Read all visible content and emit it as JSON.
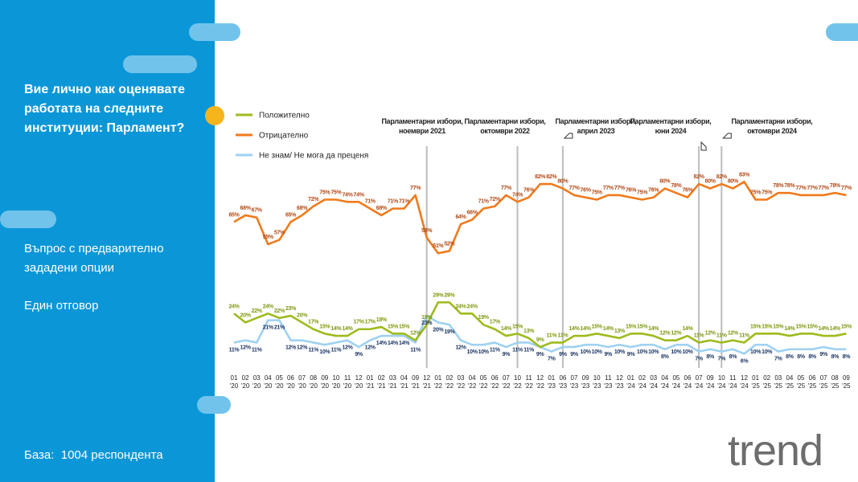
{
  "title": "Вие лично как оценявате работата на следните институции: Парламент?",
  "question_type": "Въпрос с предварително зададени опции",
  "answer_type": "Един отговор",
  "base": "База:  1004 респондента",
  "logo": "trend",
  "chart_data": {
    "type": "line",
    "categories": [
      "01 '20",
      "02 '20",
      "03 '20",
      "04 '20",
      "05 '20",
      "06 '20",
      "07 '20",
      "08 '20",
      "09 '20",
      "10 '20",
      "11 '20",
      "12 '20",
      "01 '21",
      "02 '21",
      "03 '21",
      "04 '21",
      "09 '21",
      "12 '21",
      "01 '22",
      "02 '22",
      "03 '22",
      "04 '22",
      "05 '22",
      "06 '22",
      "07 '22",
      "10 '22",
      "11 '22",
      "12 '22",
      "01 '23",
      "06 '23",
      "07 '23",
      "09 '23",
      "10 '23",
      "11 '23",
      "12 '23",
      "01 '24",
      "02 '24",
      "03 '24",
      "04 '24",
      "05 '24",
      "06 '24",
      "07 '24",
      "09 '24",
      "10 '24",
      "11 '24",
      "12 '24",
      "01 '25",
      "02 '25",
      "03 '25",
      "04 '25",
      "05 '25",
      "06 '25",
      "07 '25",
      "08 '25",
      "09 '25"
    ],
    "series": [
      {
        "name": "Положително",
        "color": "#9dbb1e",
        "label_color": "#7f9a12",
        "values": [
          24,
          20,
          22,
          24,
          22,
          23,
          20,
          17,
          15,
          14,
          14,
          17,
          17,
          18,
          15,
          15,
          12,
          19,
          29,
          29,
          24,
          24,
          19,
          17,
          14,
          15,
          13,
          9,
          11,
          11,
          14,
          14,
          15,
          14,
          13,
          15,
          15,
          14,
          12,
          12,
          14,
          11,
          12,
          11,
          12,
          11,
          15,
          15,
          15,
          14,
          15,
          15,
          14,
          14,
          15
        ],
        "value_labels": [
          "24%",
          "20%",
          "22%",
          "24%",
          "22%",
          "23%",
          "20%",
          "17%",
          "15%",
          "14%",
          "14%",
          "17%",
          "17%",
          "18%",
          "15%",
          "15%",
          "12%",
          "19%",
          "29%",
          "29%",
          "24%",
          "24%",
          "19%",
          "17%",
          "14%",
          "15%",
          "13%",
          "9%",
          "11%",
          "11%",
          "14%",
          "14%",
          "15%",
          "14%",
          "13%",
          "15%",
          "15%",
          "14%",
          "12%",
          "12%",
          "14%",
          "11%",
          "12%",
          "11%",
          "12%",
          "11%",
          "15%",
          "15%",
          "15%",
          "14%",
          "15%",
          "15%",
          "14%",
          "14%",
          "15%"
        ]
      },
      {
        "name": "Отрицателно",
        "color": "#f07a1c",
        "label_color": "#b24a16",
        "values": [
          65,
          68,
          67,
          55,
          57,
          65,
          68,
          72,
          75,
          75,
          74,
          74,
          71,
          68,
          71,
          71,
          77,
          58,
          51,
          52,
          64,
          66,
          71,
          72,
          77,
          74,
          76,
          82,
          82,
          80,
          77,
          76,
          75,
          77,
          77,
          76,
          75,
          76,
          80,
          78,
          76,
          82,
          80,
          82,
          80,
          83,
          75,
          75,
          78,
          78,
          77,
          77,
          77,
          78,
          77
        ],
        "value_labels": [
          "65%",
          "68%",
          "67%",
          "55%",
          "57%",
          "65%",
          "68%",
          "72%",
          "75%",
          "75%",
          "74%",
          "74%",
          "71%",
          "68%",
          "71%",
          "71%",
          "77%",
          "58%",
          "51%",
          "52%",
          "64%",
          "66%",
          "71%",
          "72%",
          "77%",
          "74%",
          "76%",
          "82%",
          "82%",
          "80%",
          "77%",
          "76%",
          "75%",
          "77%",
          "77%",
          "76%",
          "75%",
          "76%",
          "80%",
          "78%",
          "76%",
          "82%",
          "80%",
          "82%",
          "80%",
          "83%",
          "75%",
          "75%",
          "78%",
          "78%",
          "77%",
          "77%",
          "77%",
          "78%",
          "77%"
        ]
      },
      {
        "name": "Не знам/ Не мога да преценя",
        "color": "#9fd1f1",
        "label_color": "#1f3864",
        "values": [
          11,
          12,
          11,
          21,
          21,
          12,
          12,
          11,
          10,
          11,
          12,
          9,
          12,
          14,
          14,
          14,
          11,
          23,
          20,
          19,
          12,
          10,
          10,
          11,
          9,
          11,
          11,
          9,
          7,
          9,
          9,
          10,
          10,
          9,
          10,
          9,
          10,
          10,
          8,
          10,
          10,
          7,
          8,
          7,
          8,
          6,
          10,
          10,
          7,
          8,
          8,
          8,
          9,
          8,
          8
        ],
        "value_labels": [
          "11%",
          "12%",
          "11%",
          "21%",
          "21%",
          "12%",
          "12%",
          "11%",
          "10%",
          "11%",
          "12%",
          "9%",
          "12%",
          "14%",
          "14%",
          "14%",
          "11%",
          "23%",
          "20%",
          "19%",
          "12%",
          "10%",
          "10%",
          "11%",
          "9%",
          "11%",
          "11%",
          "9%",
          "7%",
          "9%",
          "9%",
          "10%",
          "10%",
          "9%",
          "10%",
          "9%",
          "10%",
          "10%",
          "8%",
          "10%",
          "10%",
          "7%",
          "8%",
          "7%",
          "8%",
          "6%",
          "10%",
          "10%",
          "7%",
          "8%",
          "8%",
          "8%",
          "9%",
          "8%",
          "8%"
        ]
      }
    ],
    "annotations": [
      {
        "text": "Парламентарни избори, ноември 2021",
        "x": "12 '21"
      },
      {
        "text": "Парламентарни избори, октомври 2022",
        "x": "10 '22"
      },
      {
        "text": "Парламентарни избори, април 2023",
        "x": "06 '23"
      },
      {
        "text": "Парламентарни избори, юни 2024",
        "x": "07 '24"
      },
      {
        "text": "Парламентарни избори, октомври 2024",
        "x": "10 '24"
      }
    ]
  }
}
